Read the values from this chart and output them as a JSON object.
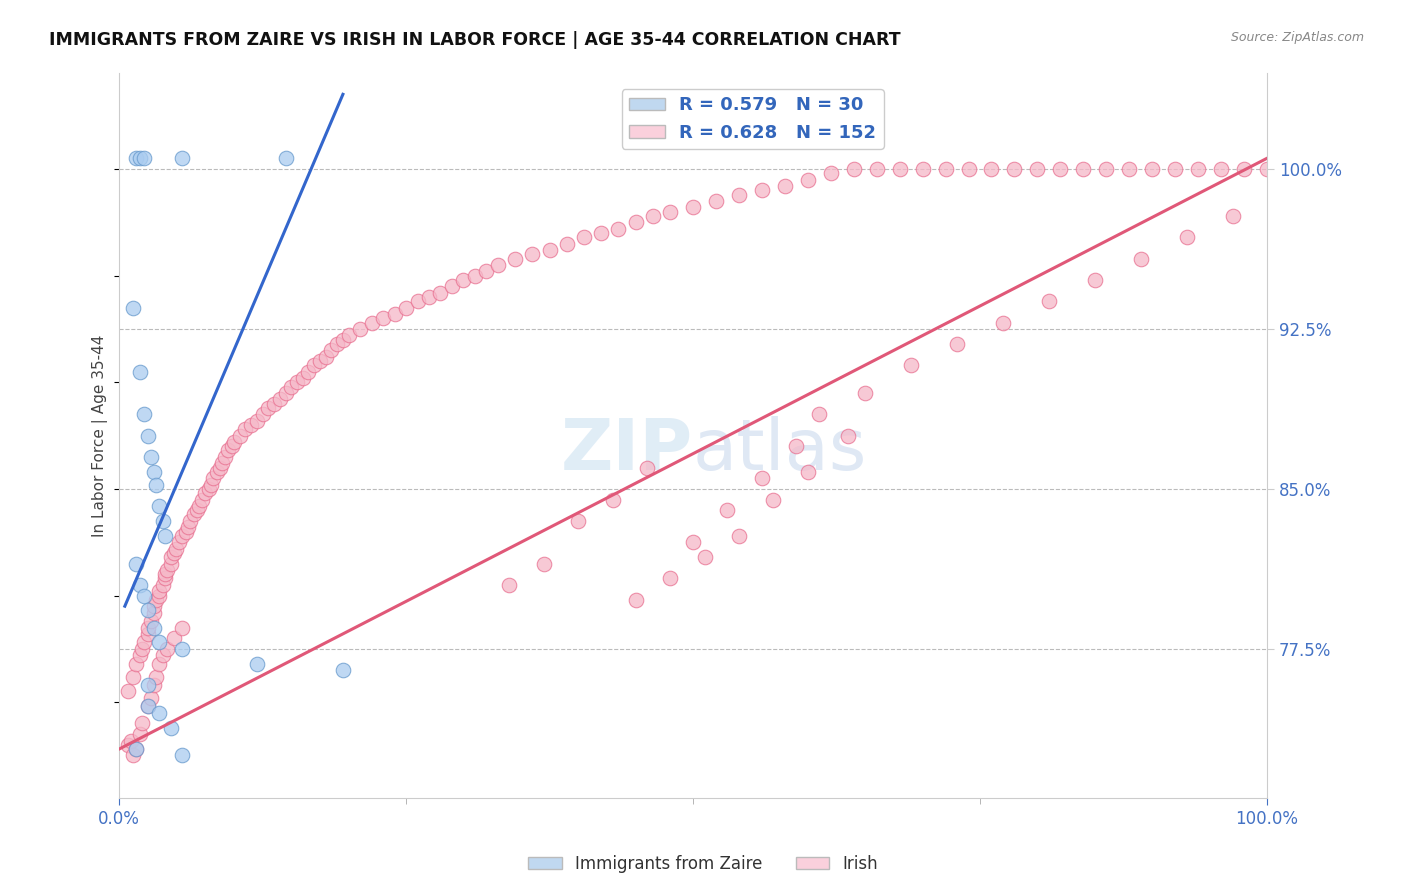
{
  "title": "IMMIGRANTS FROM ZAIRE VS IRISH IN LABOR FORCE | AGE 35-44 CORRELATION CHART",
  "source": "Source: ZipAtlas.com",
  "ylabel": "In Labor Force | Age 35-44",
  "x_min": 0.0,
  "x_max": 1.0,
  "y_min": 0.705,
  "y_max": 1.045,
  "yticks": [
    0.775,
    0.85,
    0.925,
    1.0
  ],
  "ytick_labels": [
    "77.5%",
    "85.0%",
    "92.5%",
    "100.0%"
  ],
  "blue_R": 0.579,
  "blue_N": 30,
  "pink_R": 0.628,
  "pink_N": 152,
  "blue_color": "#aaccf0",
  "pink_color": "#f5b8c8",
  "blue_edge_color": "#6699cc",
  "pink_edge_color": "#e87090",
  "blue_line_color": "#3366cc",
  "pink_line_color": "#e05878",
  "legend_blue_color": "#c0d8f0",
  "legend_pink_color": "#fad0dc",
  "blue_trend_x": [
    0.005,
    0.195
  ],
  "blue_trend_y": [
    0.795,
    1.035
  ],
  "pink_trend_x": [
    0.0,
    1.0
  ],
  "pink_trend_y": [
    0.728,
    1.005
  ],
  "blue_x": [
    0.015,
    0.018,
    0.022,
    0.055,
    0.145,
    0.012,
    0.018,
    0.022,
    0.025,
    0.028,
    0.03,
    0.032,
    0.035,
    0.038,
    0.04,
    0.015,
    0.018,
    0.022,
    0.025,
    0.03,
    0.035,
    0.055,
    0.12,
    0.195,
    0.025,
    0.025,
    0.035,
    0.045,
    0.015,
    0.055
  ],
  "blue_y": [
    1.005,
    1.005,
    1.005,
    1.005,
    1.005,
    0.935,
    0.905,
    0.885,
    0.875,
    0.865,
    0.858,
    0.852,
    0.842,
    0.835,
    0.828,
    0.815,
    0.805,
    0.8,
    0.793,
    0.785,
    0.778,
    0.775,
    0.768,
    0.765,
    0.758,
    0.748,
    0.745,
    0.738,
    0.728,
    0.725
  ],
  "pink_x": [
    0.008,
    0.012,
    0.015,
    0.018,
    0.02,
    0.022,
    0.025,
    0.025,
    0.028,
    0.03,
    0.03,
    0.032,
    0.035,
    0.035,
    0.038,
    0.04,
    0.04,
    0.042,
    0.045,
    0.045,
    0.048,
    0.05,
    0.052,
    0.055,
    0.058,
    0.06,
    0.062,
    0.065,
    0.068,
    0.07,
    0.072,
    0.075,
    0.078,
    0.08,
    0.082,
    0.085,
    0.088,
    0.09,
    0.092,
    0.095,
    0.098,
    0.1,
    0.105,
    0.11,
    0.115,
    0.12,
    0.125,
    0.13,
    0.135,
    0.14,
    0.145,
    0.15,
    0.155,
    0.16,
    0.165,
    0.17,
    0.175,
    0.18,
    0.185,
    0.19,
    0.195,
    0.2,
    0.21,
    0.22,
    0.23,
    0.24,
    0.25,
    0.26,
    0.27,
    0.28,
    0.29,
    0.3,
    0.31,
    0.32,
    0.33,
    0.345,
    0.36,
    0.375,
    0.39,
    0.405,
    0.42,
    0.435,
    0.45,
    0.465,
    0.48,
    0.5,
    0.52,
    0.54,
    0.56,
    0.58,
    0.6,
    0.62,
    0.64,
    0.66,
    0.68,
    0.7,
    0.72,
    0.74,
    0.76,
    0.78,
    0.8,
    0.82,
    0.84,
    0.86,
    0.88,
    0.9,
    0.92,
    0.94,
    0.96,
    0.98,
    1.0,
    0.008,
    0.01,
    0.012,
    0.015,
    0.018,
    0.02,
    0.025,
    0.028,
    0.03,
    0.032,
    0.035,
    0.038,
    0.042,
    0.048,
    0.055,
    0.4,
    0.43,
    0.46,
    0.5,
    0.53,
    0.56,
    0.59,
    0.34,
    0.37,
    0.61,
    0.65,
    0.69,
    0.73,
    0.77,
    0.81,
    0.85,
    0.89,
    0.93,
    0.97,
    0.45,
    0.48,
    0.51,
    0.54,
    0.57,
    0.6,
    0.635
  ],
  "pink_y": [
    0.755,
    0.762,
    0.768,
    0.772,
    0.775,
    0.778,
    0.782,
    0.785,
    0.788,
    0.792,
    0.795,
    0.798,
    0.8,
    0.802,
    0.805,
    0.808,
    0.81,
    0.812,
    0.815,
    0.818,
    0.82,
    0.822,
    0.825,
    0.828,
    0.83,
    0.832,
    0.835,
    0.838,
    0.84,
    0.842,
    0.845,
    0.848,
    0.85,
    0.852,
    0.855,
    0.858,
    0.86,
    0.862,
    0.865,
    0.868,
    0.87,
    0.872,
    0.875,
    0.878,
    0.88,
    0.882,
    0.885,
    0.888,
    0.89,
    0.892,
    0.895,
    0.898,
    0.9,
    0.902,
    0.905,
    0.908,
    0.91,
    0.912,
    0.915,
    0.918,
    0.92,
    0.922,
    0.925,
    0.928,
    0.93,
    0.932,
    0.935,
    0.938,
    0.94,
    0.942,
    0.945,
    0.948,
    0.95,
    0.952,
    0.955,
    0.958,
    0.96,
    0.962,
    0.965,
    0.968,
    0.97,
    0.972,
    0.975,
    0.978,
    0.98,
    0.982,
    0.985,
    0.988,
    0.99,
    0.992,
    0.995,
    0.998,
    1.0,
    1.0,
    1.0,
    1.0,
    1.0,
    1.0,
    1.0,
    1.0,
    1.0,
    1.0,
    1.0,
    1.0,
    1.0,
    1.0,
    1.0,
    1.0,
    1.0,
    1.0,
    1.0,
    0.73,
    0.732,
    0.725,
    0.728,
    0.735,
    0.74,
    0.748,
    0.752,
    0.758,
    0.762,
    0.768,
    0.772,
    0.775,
    0.78,
    0.785,
    0.835,
    0.845,
    0.86,
    0.825,
    0.84,
    0.855,
    0.87,
    0.805,
    0.815,
    0.885,
    0.895,
    0.908,
    0.918,
    0.928,
    0.938,
    0.948,
    0.958,
    0.968,
    0.978,
    0.798,
    0.808,
    0.818,
    0.828,
    0.845,
    0.858,
    0.875
  ]
}
